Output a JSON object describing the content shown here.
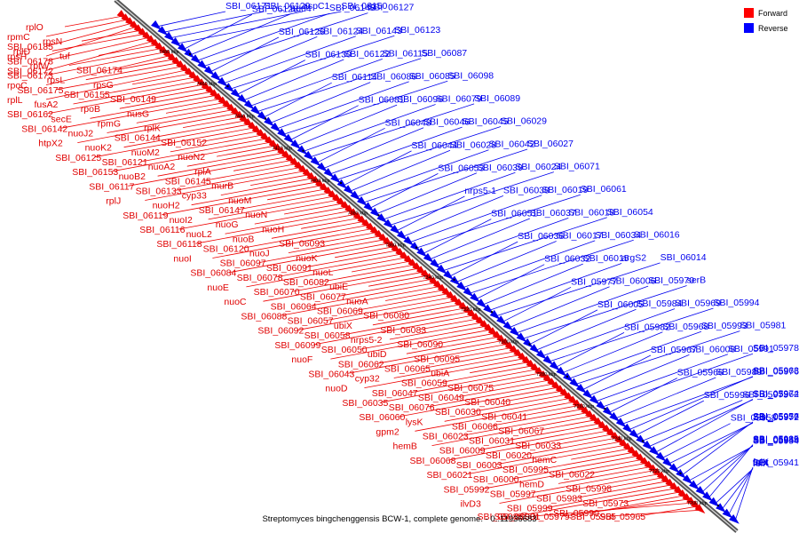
{
  "caption": "Streptomyces bingchenggensis BCW-1, complete genome. - 0..11936683",
  "legend": [
    {
      "label": "Forward",
      "color": "#ff0000"
    },
    {
      "label": "Reverse",
      "color": "#0000ff"
    }
  ],
  "colors": {
    "forward": "#ee0000",
    "reverse": "#0000ee",
    "axis": "#555555"
  },
  "scale_ticks": [
    "7480 kbp",
    "7460 kbp",
    "7440 kbp",
    "7420 kbp",
    "7400 kbp",
    "7380 kbp",
    "7360 kbp",
    "7340 kbp",
    "7320 kbp",
    "7300 kbp",
    "7280 kbp",
    "7260 kbp",
    "7240 kbp",
    "7220 kbp",
    "7200 kbp"
  ],
  "forward_labels": [
    "rplO",
    "rpmC",
    "SBI_06185",
    "rpsH",
    "rpsN",
    "rplD",
    "SBI_06178",
    "SBI_06172",
    "tuf",
    "rplW",
    "SBI_06173",
    "rpoC",
    "SBI_06174",
    "rpsL",
    "SBI_06175",
    "rplL",
    "rpsG",
    "SBI_06155",
    "fusA2",
    "SBI_06162",
    "SBI_06149",
    "rpoB",
    "secE",
    "SBI_06142",
    "nusG",
    "rpmG",
    "nuoJ2",
    "htpX2",
    "rplK",
    "SBI_06144",
    "nuoK2",
    "SBI_06125",
    "SBI_06152",
    "nuoM2",
    "SBI_06121",
    "SBI_06153",
    "nuoN2",
    "nuoA2",
    "nuoB2",
    "SBI_06117",
    "rplA",
    "SBI_06145",
    "SBI_06133",
    "rplJ",
    "murB",
    "cyp33",
    "nuoH2",
    "SBI_06119",
    "nuoM",
    "SBI_06147",
    "nuoI2",
    "SBI_06116",
    "nuoN",
    "nuoG",
    "nuoL2",
    "SBI_06118",
    "nuoH",
    "nuoB",
    "SBI_06120",
    "nuoI",
    "SBI_06093",
    "nuoJ",
    "SBI_06097",
    "SBI_06084",
    "nuoK",
    "SBI_06091",
    "SBI_06078",
    "nuoE",
    "nuoL",
    "SBI_06082",
    "SBI_06070",
    "nuoC",
    "ubiE",
    "SBI_06077",
    "SBI_06064",
    "SBI_06088",
    "nuoA",
    "SBI_06069",
    "SBI_06057",
    "SBI_06092",
    "SBI_06080",
    "ubiX",
    "SBI_06058",
    "SBI_06099",
    "SBI_06083",
    "nrps5-2",
    "SBI_06050",
    "nuoF",
    "SBI_06090",
    "ubiD",
    "SBI_06062",
    "SBI_06043",
    "SBI_06095",
    "SBI_06065",
    "cyp32",
    "nuoD",
    "ubiA",
    "SBI_06059",
    "SBI_06047",
    "SBI_06035",
    "SBI_06075",
    "SBI_06049",
    "SBI_06076",
    "SBI_06060",
    "SBI_06040",
    "SBI_06030",
    "lysK",
    "gpm2",
    "SBI_06041",
    "SBI_06066",
    "SBI_06023",
    "hemB",
    "SBI_06067",
    "SBI_06031",
    "SBI_06009",
    "SBI_06068",
    "SBI_06033",
    "SBI_06020",
    "SBI_06003",
    "SBI_06021",
    "hemC",
    "SBI_05995",
    "SBI_06000",
    "SBI_05992",
    "SBI_06022",
    "hemD",
    "SBI_05997",
    "ilvD3",
    "SBI_05998",
    "SBI_05983",
    "SBI_05999",
    "SBI_05985",
    "SBI_05973",
    "SBI_05990",
    "SBI_05979",
    "SBI_06001",
    "SBI_05965",
    "SBI_05955"
  ],
  "reverse_labels": [
    "SBI_06171",
    "SBI_06129",
    "aspC1",
    "SBI_06150",
    "SBI_06128",
    "add4",
    "SBI_06148",
    "SBI_06127",
    "SBI_06126",
    "SBI_06124",
    "SBI_06143",
    "SBI_06123",
    "SBI_06130",
    "SBI_06122",
    "SBI_06115",
    "SBI_06087",
    "SBI_06114",
    "SBI_06086",
    "SBI_06085",
    "SBI_06098",
    "SBI_06081",
    "SBI_06096",
    "SBI_06079",
    "SBI_06089",
    "SBI_06048",
    "SBI_06046",
    "SBI_06045",
    "SBI_06029",
    "SBI_06044",
    "SBI_06028",
    "SBI_06042",
    "SBI_06027",
    "SBI_06053",
    "SBI_06039",
    "SBI_06024",
    "SBI_06071",
    "nrps5-1",
    "SBI_06038",
    "SBI_06019",
    "SBI_06061",
    "SBI_06051",
    "SBI_06037",
    "SBI_06018",
    "SBI_06054",
    "SBI_06036",
    "SBI_06017",
    "SBI_06034",
    "SBI_06016",
    "SBI_06032",
    "SBI_06015",
    "argS2",
    "SBI_06014",
    "SBI_05977",
    "SBI_06006",
    "SBI_05970",
    "serB",
    "SBI_06005",
    "SBI_05984",
    "SBI_05969",
    "SBI_05994",
    "SBI_05982",
    "SBI_05968",
    "SBI_05993",
    "SBI_05981",
    "SBI_05967",
    "SBI_06008",
    "SBI_05991",
    "SBI_05978",
    "SBI_05966",
    "SBI_05989",
    "SBI_05976",
    "SBI_05963",
    "SBI_05996",
    "SBI_05975",
    "SBI_05962",
    "SBI_05974",
    "SBI_05958",
    "SBI_05972",
    "SBI_05957",
    "SBI_05956",
    "SBI_05954",
    "SBI_05948",
    "SBI_05939",
    "SBI_05935",
    "folX",
    "SBI_05941",
    "folK",
    "ppa"
  ]
}
